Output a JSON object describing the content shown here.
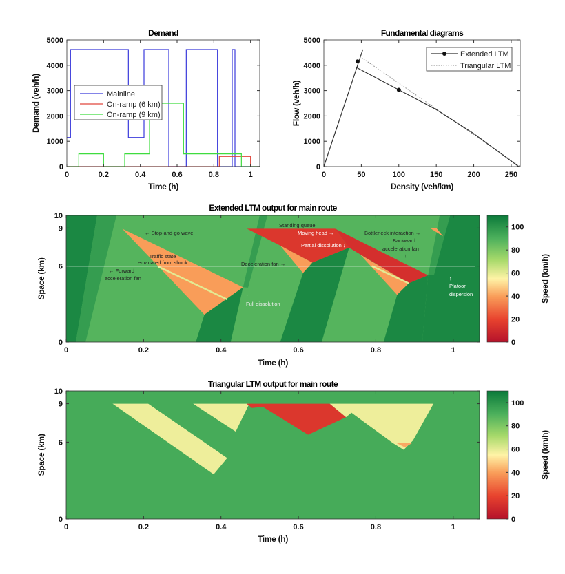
{
  "chart_data": [
    {
      "type": "line",
      "title": "Demand",
      "xlabel": "Time (h)",
      "ylabel": "Demand (veh/h)",
      "xlim": [
        0,
        1.05
      ],
      "ylim": [
        0,
        5000
      ],
      "xticks": [
        "0",
        "0.2",
        "0.4",
        "0.6",
        "0.8",
        "1"
      ],
      "yticks": [
        "0",
        "1000",
        "2000",
        "3000",
        "4000",
        "5000"
      ],
      "legend_position": "center-left",
      "series": [
        {
          "name": "Mainline",
          "color": "#3b3bdb",
          "step": [
            [
              0,
              1150
            ],
            [
              0.02,
              4620
            ],
            [
              0.335,
              1150
            ],
            [
              0.42,
              4620
            ],
            [
              0.555,
              0
            ],
            [
              0.65,
              4620
            ],
            [
              0.82,
              0
            ],
            [
              0.9,
              4620
            ],
            [
              0.915,
              0
            ],
            [
              1.05,
              0
            ]
          ]
        },
        {
          "name": "On-ramp (6 km)",
          "color": "#e0463c",
          "step": [
            [
              0,
              0
            ],
            [
              0.83,
              400
            ],
            [
              1.0,
              0
            ],
            [
              1.05,
              0
            ]
          ]
        },
        {
          "name": "On-ramp (9 km)",
          "color": "#3fdc3f",
          "step": [
            [
              0,
              0
            ],
            [
              0.065,
              500
            ],
            [
              0.2,
              0
            ],
            [
              0.315,
              500
            ],
            [
              0.45,
              2500
            ],
            [
              0.635,
              500
            ],
            [
              0.95,
              0
            ],
            [
              1.05,
              0
            ]
          ]
        }
      ]
    },
    {
      "type": "line",
      "title": "Fundamental diagrams",
      "xlabel": "Density (veh/km)",
      "ylabel": "Flow (veh/h)",
      "xlim": [
        0,
        262
      ],
      "ylim": [
        0,
        5000
      ],
      "xticks": [
        "0",
        "50",
        "100",
        "150",
        "200",
        "250"
      ],
      "yticks": [
        "0",
        "1000",
        "2000",
        "3000",
        "4000",
        "5000"
      ],
      "legend_position": "top-right",
      "series": [
        {
          "name": "Extended LTM",
          "color": "#333333",
          "style": "solid",
          "points": [
            [
              0,
              0
            ],
            [
              52,
              4620
            ]
          ],
          "congested": [
            [
              43,
              3920
            ],
            [
              100,
              3030
            ],
            [
              150,
              2250
            ],
            [
              200,
              1300
            ],
            [
              260,
              0
            ]
          ],
          "markers": [
            [
              45,
              4150
            ],
            [
              100,
              3030
            ]
          ]
        },
        {
          "name": "Triangular LTM",
          "color": "#888888",
          "style": "dotted",
          "points": [
            [
              48,
              4350
            ],
            [
              262,
              0
            ]
          ]
        }
      ]
    },
    {
      "type": "heatmap",
      "title": "Extended LTM output for main route",
      "xlabel": "Time (h)",
      "ylabel": "Space (km)",
      "colorbar_label": "Speed (km/h)",
      "xlim": [
        0,
        1.068
      ],
      "ylim": [
        0,
        10
      ],
      "clim": [
        0,
        110
      ],
      "xticks": [
        "0",
        "0.2",
        "0.4",
        "0.6",
        "0.8",
        "1"
      ],
      "yticks": [
        "0",
        "6",
        "9",
        "10"
      ],
      "cticks": [
        "0",
        "20",
        "40",
        "60",
        "80",
        "100"
      ],
      "background_speed": 88,
      "reference_line_km": 6,
      "regions": [
        {
          "speed": 105,
          "poly": [
            [
              0,
              10
            ],
            [
              0.08,
              10
            ],
            [
              0.025,
              0
            ],
            [
              0,
              0
            ]
          ]
        },
        {
          "speed": 97,
          "poly": [
            [
              0.08,
              10
            ],
            [
              0.13,
              10
            ],
            [
              0.05,
              0
            ],
            [
              0.025,
              0
            ]
          ]
        },
        {
          "speed": 97,
          "poly": [
            [
              0.457,
              4.33
            ],
            [
              0.5,
              10
            ],
            [
              0.52,
              10
            ],
            [
              0.47,
              4.3
            ]
          ]
        },
        {
          "speed": 40,
          "poly": [
            [
              0.145,
              8.95
            ],
            [
              0.457,
              4.33
            ],
            [
              0.357,
              2.17
            ]
          ]
        },
        {
          "speed": 105,
          "poly": [
            [
              0.357,
              2.17
            ],
            [
              0.457,
              4.33
            ],
            [
              0.425,
              0
            ],
            [
              0.335,
              0
            ]
          ]
        },
        {
          "speed": 15,
          "poly": [
            [
              0.467,
              8.95
            ],
            [
              0.695,
              8.95
            ],
            [
              0.731,
              7.45
            ],
            [
              0.636,
              6.27
            ],
            [
              0.553,
              7.62
            ]
          ]
        },
        {
          "speed": 40,
          "poly": [
            [
              0.553,
              7.62
            ],
            [
              0.636,
              6.27
            ],
            [
              0.612,
              5.45
            ]
          ]
        },
        {
          "speed": 12,
          "poly": [
            [
              0.695,
              8.95
            ],
            [
              0.935,
              5.27
            ],
            [
              0.885,
              4.64
            ],
            [
              0.731,
              7.45
            ]
          ]
        },
        {
          "speed": 40,
          "poly": [
            [
              0.76,
              6.9
            ],
            [
              0.885,
              4.64
            ],
            [
              0.855,
              3.73
            ]
          ]
        },
        {
          "speed": 105,
          "poly": [
            [
              0.553,
              0
            ],
            [
              0.612,
              5.45
            ],
            [
              0.636,
              6.27
            ],
            [
              0.731,
              7.45
            ],
            [
              0.66,
              0
            ]
          ]
        },
        {
          "speed": 105,
          "poly": [
            [
              0.82,
              0
            ],
            [
              0.855,
              3.73
            ],
            [
              0.885,
              4.64
            ],
            [
              0.935,
              5.27
            ],
            [
              0.92,
              0
            ]
          ]
        },
        {
          "speed": 97,
          "poly": [
            [
              0.935,
              5.27
            ],
            [
              0.965,
              10
            ],
            [
              0.992,
              10
            ],
            [
              0.95,
              5.27
            ]
          ]
        },
        {
          "speed": 105,
          "poly": [
            [
              0.95,
              5.27
            ],
            [
              0.992,
              10
            ],
            [
              1.068,
              10
            ],
            [
              1.068,
              0
            ],
            [
              0.92,
              0
            ],
            [
              0.935,
              5.27
            ]
          ]
        },
        {
          "speed": 40,
          "poly": [
            [
              0.941,
              8.98
            ],
            [
              0.956,
              9.02
            ],
            [
              0.974,
              8.35
            ]
          ]
        }
      ],
      "lines": [
        {
          "speed": 60,
          "points": [
            [
              0.238,
              5.96
            ],
            [
              0.416,
              3.37
            ]
          ]
        },
        {
          "speed": 60,
          "points": [
            [
              0.79,
              6.0
            ],
            [
              0.885,
              4.64
            ]
          ]
        }
      ],
      "annotations": [
        "← Stop-and-go wave",
        "Traffic state",
        "emanated from shock",
        "← Forward",
        "acceleration fan",
        "↑",
        "Full dissolution",
        "Deceleration fan →",
        "Standing queue",
        "Moving head →",
        "Partial dissolution ↓",
        "Bottleneck interaction →",
        "Backward",
        "acceleration fan",
        "↓",
        "↑",
        "Platoon",
        "dispersion"
      ]
    },
    {
      "type": "heatmap",
      "title": "Triangular LTM output for main route",
      "xlabel": "Time (h)",
      "ylabel": "Space (km)",
      "colorbar_label": "Speed (km/h)",
      "xlim": [
        0,
        1.068
      ],
      "ylim": [
        0,
        10
      ],
      "clim": [
        0,
        110
      ],
      "xticks": [
        "0",
        "0.2",
        "0.4",
        "0.6",
        "0.8",
        "1"
      ],
      "yticks": [
        "0",
        "6",
        "9",
        "10"
      ],
      "cticks": [
        "0",
        "20",
        "40",
        "60",
        "80",
        "100"
      ],
      "background_speed": 92,
      "regions": [
        {
          "speed": 58,
          "poly": [
            [
              0.12,
              9
            ],
            [
              0.212,
              9
            ],
            [
              0.416,
              4.76
            ],
            [
              0.381,
              3.49
            ]
          ]
        },
        {
          "speed": 58,
          "poly": [
            [
              0.328,
              9
            ],
            [
              0.473,
              9
            ],
            [
              0.438,
              6.82
            ]
          ]
        },
        {
          "speed": 15,
          "poly": [
            [
              0.466,
              9
            ],
            [
              0.681,
              9
            ],
            [
              0.723,
              7.95
            ],
            [
              0.625,
              6.58
            ],
            [
              0.508,
              8.76
            ],
            [
              0.48,
              8.67
            ]
          ]
        },
        {
          "speed": 58,
          "poly": [
            [
              0.681,
              9
            ],
            [
              0.949,
              9
            ],
            [
              0.896,
              6.13
            ],
            [
              0.872,
              5.4
            ],
            [
              0.843,
              5.95
            ],
            [
              0.737,
              8.3
            ],
            [
              0.723,
              7.95
            ]
          ]
        },
        {
          "speed": 42,
          "poly": [
            [
              0.852,
              5.95
            ],
            [
              0.895,
              5.95
            ],
            [
              0.875,
              5.6
            ]
          ]
        }
      ]
    }
  ]
}
